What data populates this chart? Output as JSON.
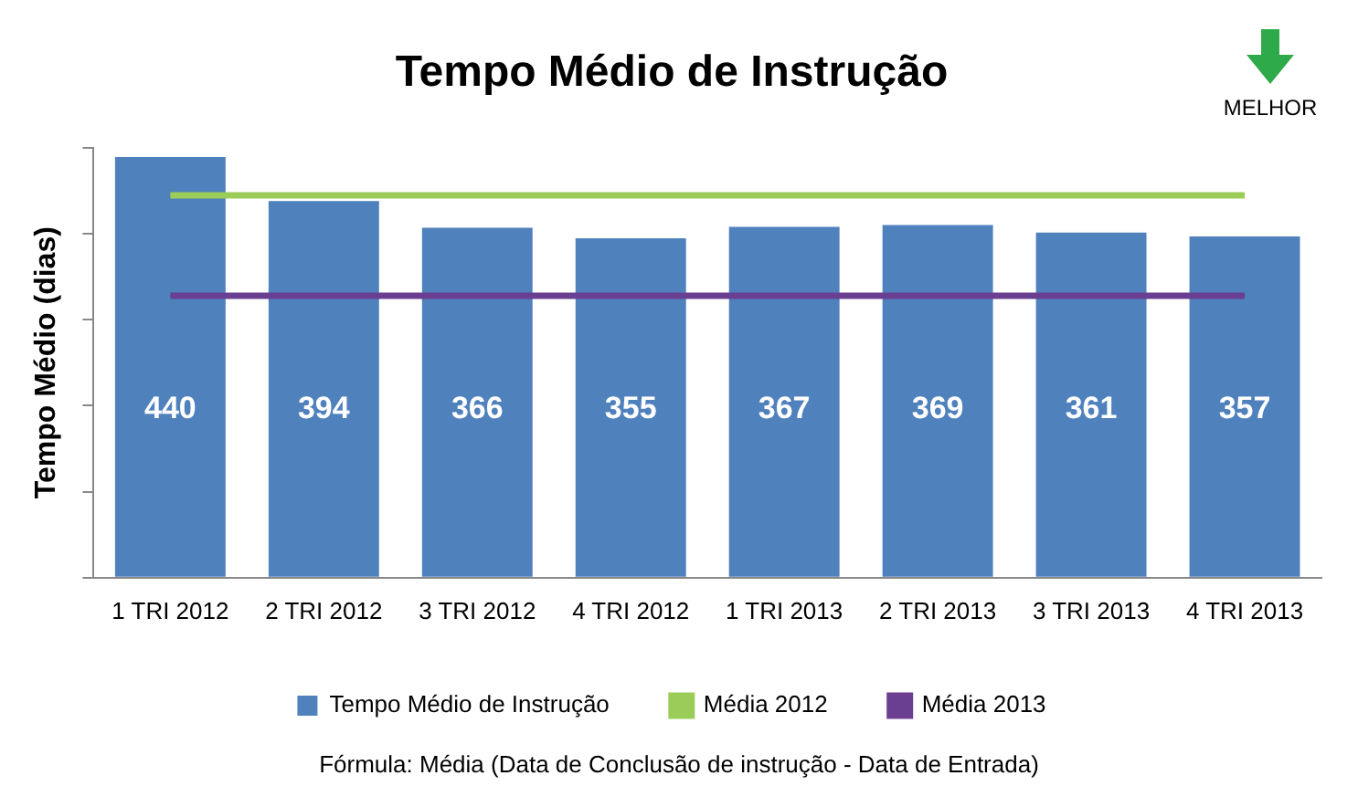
{
  "chart_data": {
    "type": "bar",
    "title": "Tempo Médio de Instrução",
    "ylabel": "Tempo Médio (dias)",
    "categories": [
      "1 TRI 2012",
      "2 TRI 2012",
      "3 TRI 2012",
      "4 TRI 2012",
      "1 TRI 2013",
      "2 TRI 2013",
      "3 TRI 2013",
      "4 TRI 2013"
    ],
    "series": [
      {
        "name": "Tempo Médio de Instrução",
        "color": "#4f81bd",
        "values": [
          440,
          394,
          366,
          355,
          367,
          369,
          361,
          357
        ],
        "value_labels": [
          "440",
          "394",
          "366",
          "355",
          "367",
          "369",
          "361",
          "357"
        ]
      },
      {
        "name": "Média 2012",
        "type": "line",
        "color": "#9bcc58",
        "values": [
          400,
          400,
          400,
          400,
          400,
          400,
          400,
          400
        ]
      },
      {
        "name": "Média 2013",
        "type": "line",
        "color": "#6a3f91",
        "values": [
          295,
          295,
          295,
          295,
          295,
          295,
          295,
          295
        ]
      }
    ],
    "ylim": [
      0,
      450
    ],
    "yticks": [
      {
        "value": 0,
        "label": null
      },
      {
        "value": 90,
        "label": null
      },
      {
        "value": 180,
        "label": null
      },
      {
        "value": 270,
        "label": null
      },
      {
        "value": 360,
        "label": null
      },
      {
        "value": 450,
        "label": null
      }
    ],
    "tick_labels": "x",
    "grid": false,
    "legend": "bottom",
    "annotations": [
      "MELHOR",
      "Fórmula: Média (Data de Conclusão de instrução - Data de Entrada)"
    ]
  }
}
